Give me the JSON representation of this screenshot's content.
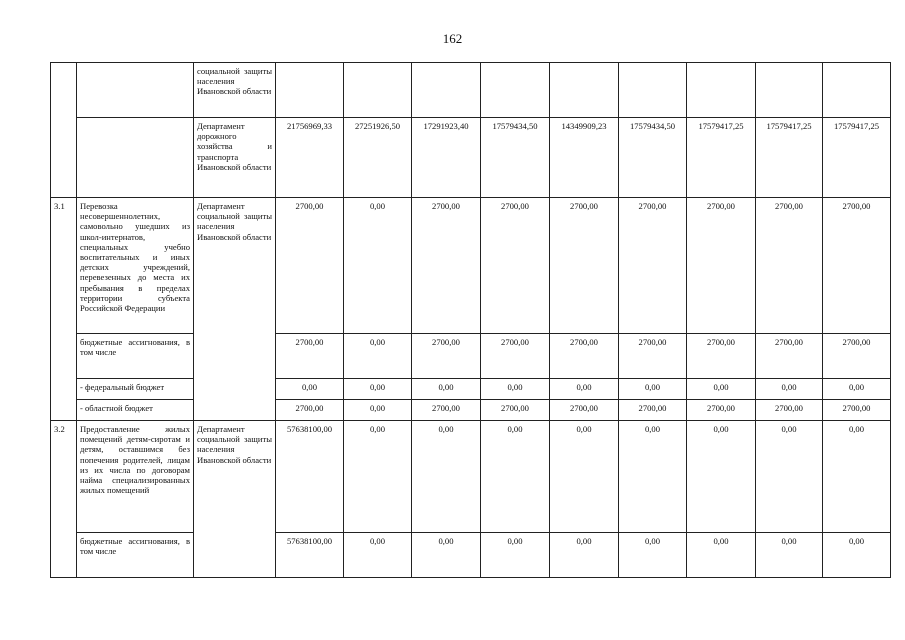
{
  "page_number": "162",
  "rows": [
    {
      "num": "",
      "name": "",
      "dept": "социальной защиты населения Ивановской области",
      "values": [
        "",
        "",
        "",
        "",
        "",
        "",
        "",
        "",
        ""
      ]
    },
    {
      "num": "",
      "name": "",
      "dept": "Департамент дорожного хозяйства и транспорта Ивановской области",
      "values": [
        "21756969,33",
        "27251926,50",
        "17291923,40",
        "17579434,50",
        "14349909,23",
        "17579434,50",
        "17579417,25",
        "17579417,25",
        "17579417,25"
      ]
    },
    {
      "num": "3.1",
      "name": "Перевозка несовершеннолетних, самовольно ушедших из школ-интернатов, специальных учебно воспитательных и иных детских учреждений, перевезенных до места их пребывания в пределах территории субъекта Российской Федерации",
      "dept": "Департамент социальной защиты населения Ивановской области",
      "values": [
        "2700,00",
        "0,00",
        "2700,00",
        "2700,00",
        "2700,00",
        "2700,00",
        "2700,00",
        "2700,00",
        "2700,00"
      ]
    },
    {
      "name": "бюджетные ассигнования, в том числе",
      "values": [
        "2700,00",
        "0,00",
        "2700,00",
        "2700,00",
        "2700,00",
        "2700,00",
        "2700,00",
        "2700,00",
        "2700,00"
      ]
    },
    {
      "name": "- федеральный бюджет",
      "values": [
        "0,00",
        "0,00",
        "0,00",
        "0,00",
        "0,00",
        "0,00",
        "0,00",
        "0,00",
        "0,00"
      ]
    },
    {
      "name": "- областной бюджет",
      "values": [
        "2700,00",
        "0,00",
        "2700,00",
        "2700,00",
        "2700,00",
        "2700,00",
        "2700,00",
        "2700,00",
        "2700,00"
      ]
    },
    {
      "num": "3.2",
      "name": "Предоставление жилых помещений детям-сиротам и детям, оставшимся без попечения родителей, лицам из их числа по договорам найма специализированных жилых помещений",
      "dept": "Департамент социальной защиты населения Ивановской области",
      "values": [
        "57638100,00",
        "0,00",
        "0,00",
        "0,00",
        "0,00",
        "0,00",
        "0,00",
        "0,00",
        "0,00"
      ]
    },
    {
      "name": "бюджетные ассигнования, в том числе",
      "values": [
        "57638100,00",
        "0,00",
        "0,00",
        "0,00",
        "0,00",
        "0,00",
        "0,00",
        "0,00",
        "0,00"
      ]
    }
  ]
}
